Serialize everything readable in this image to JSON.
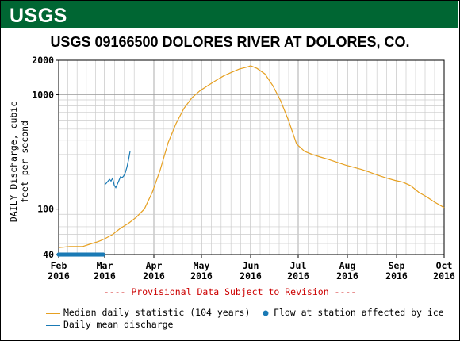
{
  "header": {
    "logo_text": "USGS"
  },
  "chart_data": {
    "type": "line",
    "title": "USGS 09166500 DOLORES RIVER AT DOLORES, CO.",
    "ylabel": "DAILY Discharge, cubic feet per second",
    "yscale": "log",
    "ylim": [
      40,
      2000
    ],
    "y_ticks": [
      {
        "value": 40,
        "label": "40"
      },
      {
        "value": 100,
        "label": "100"
      },
      {
        "value": 1000,
        "label": "1000"
      },
      {
        "value": 2000,
        "label": "2000"
      }
    ],
    "xlim": [
      "2016-02-01",
      "2016-10-01"
    ],
    "x_ticks": [
      {
        "month": "Feb",
        "year": "2016",
        "date": "2016-02-01"
      },
      {
        "month": "Mar",
        "year": "2016",
        "date": "2016-03-01"
      },
      {
        "month": "Apr",
        "year": "2016",
        "date": "2016-04-01"
      },
      {
        "month": "May",
        "year": "2016",
        "date": "2016-05-01"
      },
      {
        "month": "Jun",
        "year": "2016",
        "date": "2016-06-01"
      },
      {
        "month": "Jul",
        "year": "2016",
        "date": "2016-07-01"
      },
      {
        "month": "Aug",
        "year": "2016",
        "date": "2016-08-01"
      },
      {
        "month": "Sep",
        "year": "2016",
        "date": "2016-09-01"
      },
      {
        "month": "Oct",
        "year": "2016",
        "date": "2016-10-01"
      }
    ],
    "grid": true,
    "series": [
      {
        "name": "Median daily statistic (104 years)",
        "color": "#e6a021",
        "points": [
          [
            "2016-02-01",
            46
          ],
          [
            "2016-02-08",
            47
          ],
          [
            "2016-02-16",
            47
          ],
          [
            "2016-02-22",
            50
          ],
          [
            "2016-02-26",
            52
          ],
          [
            "2016-03-01",
            55
          ],
          [
            "2016-03-06",
            60
          ],
          [
            "2016-03-11",
            68
          ],
          [
            "2016-03-16",
            75
          ],
          [
            "2016-03-21",
            85
          ],
          [
            "2016-03-26",
            100
          ],
          [
            "2016-03-31",
            140
          ],
          [
            "2016-04-05",
            220
          ],
          [
            "2016-04-10",
            380
          ],
          [
            "2016-04-15",
            560
          ],
          [
            "2016-04-20",
            760
          ],
          [
            "2016-04-25",
            940
          ],
          [
            "2016-04-30",
            1080
          ],
          [
            "2016-05-05",
            1200
          ],
          [
            "2016-05-10",
            1330
          ],
          [
            "2016-05-15",
            1460
          ],
          [
            "2016-05-20",
            1570
          ],
          [
            "2016-05-25",
            1680
          ],
          [
            "2016-05-30",
            1750
          ],
          [
            "2016-06-01",
            1790
          ],
          [
            "2016-06-05",
            1700
          ],
          [
            "2016-06-10",
            1520
          ],
          [
            "2016-06-15",
            1200
          ],
          [
            "2016-06-20",
            880
          ],
          [
            "2016-06-25",
            590
          ],
          [
            "2016-06-30",
            370
          ],
          [
            "2016-07-05",
            320
          ],
          [
            "2016-07-10",
            300
          ],
          [
            "2016-07-15",
            285
          ],
          [
            "2016-07-20",
            272
          ],
          [
            "2016-07-25",
            258
          ],
          [
            "2016-07-31",
            242
          ],
          [
            "2016-08-05",
            232
          ],
          [
            "2016-08-10",
            222
          ],
          [
            "2016-08-15",
            210
          ],
          [
            "2016-08-20",
            198
          ],
          [
            "2016-08-25",
            188
          ],
          [
            "2016-08-31",
            178
          ],
          [
            "2016-09-05",
            172
          ],
          [
            "2016-09-10",
            160
          ],
          [
            "2016-09-15",
            140
          ],
          [
            "2016-09-20",
            128
          ],
          [
            "2016-09-25",
            115
          ],
          [
            "2016-10-01",
            103
          ]
        ]
      },
      {
        "name": "Daily mean discharge",
        "color": "#1a7ab5",
        "points": [
          [
            "2016-03-01",
            163
          ],
          [
            "2016-03-02",
            168
          ],
          [
            "2016-03-03",
            175
          ],
          [
            "2016-03-04",
            182
          ],
          [
            "2016-03-05",
            176
          ],
          [
            "2016-03-06",
            186
          ],
          [
            "2016-03-07",
            162
          ],
          [
            "2016-03-08",
            154
          ],
          [
            "2016-03-09",
            165
          ],
          [
            "2016-03-10",
            178
          ],
          [
            "2016-03-11",
            192
          ],
          [
            "2016-03-12",
            188
          ],
          [
            "2016-03-13",
            195
          ],
          [
            "2016-03-14",
            208
          ],
          [
            "2016-03-15",
            232
          ],
          [
            "2016-03-16",
            268
          ],
          [
            "2016-03-17",
            320
          ]
        ]
      },
      {
        "name": "Flow at station affected by ice",
        "color": "#1a7ab5",
        "marker": "dot",
        "value": 40,
        "start": "2016-02-01",
        "end": "2016-02-29"
      }
    ]
  },
  "notice": "---- Provisional Data Subject to Revision ----",
  "legend": {
    "median_label": "Median daily statistic (104 years)",
    "ice_label": "Flow at station affected by ice",
    "daily_label": "Daily mean discharge"
  }
}
